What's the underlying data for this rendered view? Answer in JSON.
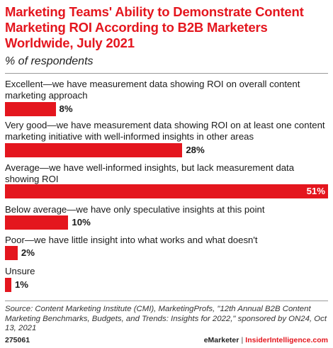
{
  "title": "Marketing Teams' Ability to Demonstrate Content Marketing ROI According to B2B Marketers Worldwide, July 2021",
  "subtitle": "% of respondents",
  "chart_data": {
    "type": "bar",
    "orientation": "horizontal",
    "categories": [
      "Excellent—we have measurement data showing ROI on overall content marketing approach",
      "Very good—we have measurement data showing ROI on at least one content marketing initiative with well-informed insights in other areas",
      "Average—we have well-informed insights, but lack measurement data showing ROI",
      "Below average—we have only speculative insights at this point",
      "Poor—we have little insight into what works and what doesn't",
      "Unsure"
    ],
    "values": [
      8,
      28,
      51,
      10,
      2,
      1
    ],
    "value_labels": [
      "8%",
      "28%",
      "51%",
      "10%",
      "2%",
      "1%"
    ],
    "unit": "%",
    "xlim": [
      0,
      51
    ],
    "grid": false,
    "bar_color": "#e4161e"
  },
  "source": "Source: Content Marketing Institute (CMI), MarketingProfs, \"12th Annual B2B Content Marketing Benchmarks, Budgets, and Trends: Insights for 2022,\" sponsored by ON24, Oct 13, 2021",
  "footer": {
    "chart_id": "275061",
    "brand_left": "eMarketer",
    "brand_sep": "|",
    "brand_right": "InsiderIntelligence.com"
  },
  "colors": {
    "accent": "#e4161e",
    "text": "#1a1a1a"
  }
}
